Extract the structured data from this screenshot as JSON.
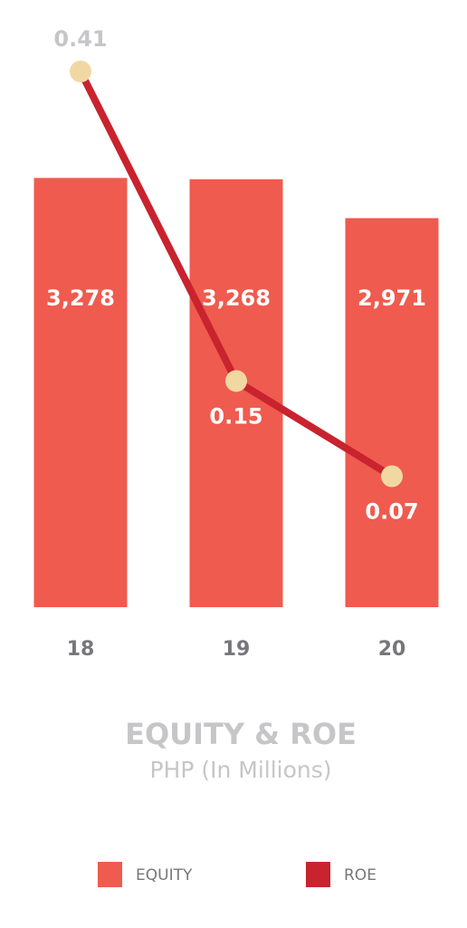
{
  "chart_data": {
    "type": "bar-line",
    "title": "EQUITY & ROE",
    "subtitle": "PHP (In Millions)",
    "categories": [
      "18",
      "19",
      "20"
    ],
    "series": [
      {
        "name": "EQUITY",
        "type": "bar",
        "color": "#ef5b4f",
        "values": [
          3278,
          3268,
          2971
        ],
        "value_labels": [
          "3,278",
          "3,268",
          "2,971"
        ]
      },
      {
        "name": "ROE",
        "type": "line",
        "axis": "y2",
        "color": "#c8232e",
        "marker_color": "#f1d8a3",
        "values": [
          0.41,
          0.15,
          0.07
        ]
      }
    ],
    "ylim": [
      0,
      4000
    ],
    "y2lim": [
      -0.04,
      0.4
    ]
  }
}
